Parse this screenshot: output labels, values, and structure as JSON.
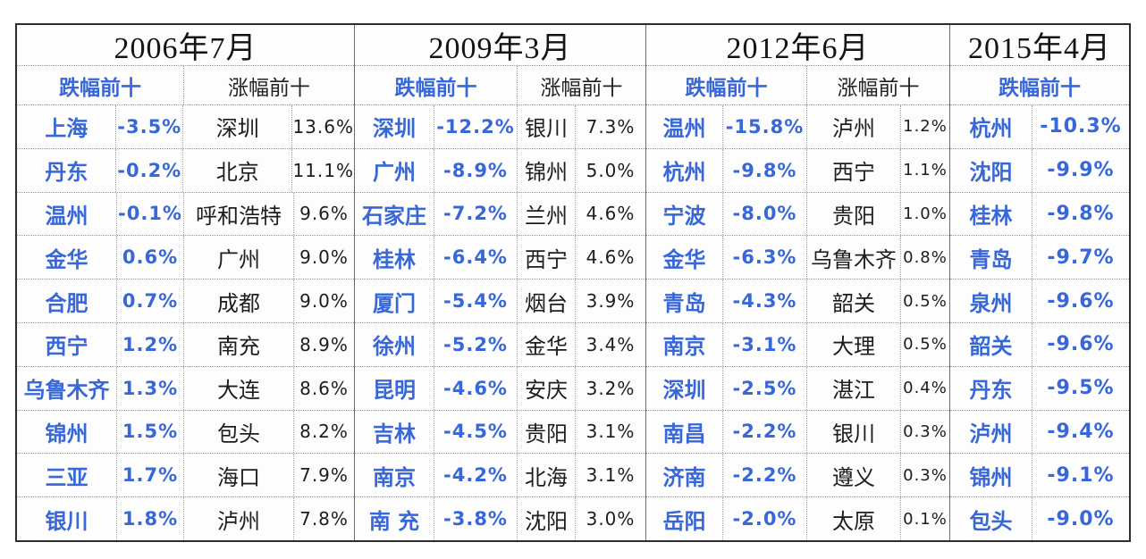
{
  "colors": {
    "accent_blue": "#3767d8",
    "text_black": "#1d1d1d",
    "grid_dotted": "#9a9a9a",
    "outer_border": "#2e2e2e"
  },
  "panels": [
    {
      "date": "2006年7月",
      "decline_header": "跌幅前十",
      "gain_header": "涨幅前十",
      "decline": [
        {
          "city": "上海",
          "pct": "-3.5%"
        },
        {
          "city": "丹东",
          "pct": "-0.2%"
        },
        {
          "city": "温州",
          "pct": "-0.1%"
        },
        {
          "city": "金华",
          "pct": "0.6%"
        },
        {
          "city": "合肥",
          "pct": "0.7%"
        },
        {
          "city": "西宁",
          "pct": "1.2%"
        },
        {
          "city": "乌鲁木齐",
          "pct": "1.3%"
        },
        {
          "city": "锦州",
          "pct": "1.5%"
        },
        {
          "city": "三亚",
          "pct": "1.7%"
        },
        {
          "city": "银川",
          "pct": "1.8%"
        }
      ],
      "gain": [
        {
          "city": "深圳",
          "pct": "13.6%"
        },
        {
          "city": "北京",
          "pct": "11.1%"
        },
        {
          "city": "呼和浩特",
          "pct": "9.6%"
        },
        {
          "city": "广州",
          "pct": "9.0%"
        },
        {
          "city": "成都",
          "pct": "9.0%"
        },
        {
          "city": "南充",
          "pct": "8.9%"
        },
        {
          "city": "大连",
          "pct": "8.6%"
        },
        {
          "city": "包头",
          "pct": "8.2%"
        },
        {
          "city": "海口",
          "pct": "7.9%"
        },
        {
          "city": "泸州",
          "pct": "7.8%"
        }
      ]
    },
    {
      "date": "2009年3月",
      "decline_header": "跌幅前十",
      "gain_header": "涨幅前十",
      "decline": [
        {
          "city": "深圳",
          "pct": "-12.2%"
        },
        {
          "city": "广州",
          "pct": "-8.9%"
        },
        {
          "city": "石家庄",
          "pct": "-7.2%"
        },
        {
          "city": "桂林",
          "pct": "-6.4%"
        },
        {
          "city": "厦门",
          "pct": "-5.4%"
        },
        {
          "city": "徐州",
          "pct": "-5.2%"
        },
        {
          "city": "昆明",
          "pct": "-4.6%"
        },
        {
          "city": "吉林",
          "pct": "-4.5%"
        },
        {
          "city": "南京",
          "pct": "-4.2%"
        },
        {
          "city": "南 充",
          "pct": "-3.8%"
        }
      ],
      "gain": [
        {
          "city": "银川",
          "pct": "7.3%"
        },
        {
          "city": "锦州",
          "pct": "5.0%"
        },
        {
          "city": "兰州",
          "pct": "4.6%"
        },
        {
          "city": "西宁",
          "pct": "4.6%"
        },
        {
          "city": "烟台",
          "pct": "3.9%"
        },
        {
          "city": "金华",
          "pct": "3.4%"
        },
        {
          "city": "安庆",
          "pct": "3.2%"
        },
        {
          "city": "贵阳",
          "pct": "3.1%"
        },
        {
          "city": "北海",
          "pct": "3.1%"
        },
        {
          "city": "沈阳",
          "pct": "3.0%"
        }
      ]
    },
    {
      "date": "2012年6月",
      "decline_header": "跌幅前十",
      "gain_header": "涨幅前十",
      "decline": [
        {
          "city": "温州",
          "pct": "-15.8%"
        },
        {
          "city": "杭州",
          "pct": "-9.8%"
        },
        {
          "city": "宁波",
          "pct": "-8.0%"
        },
        {
          "city": "金华",
          "pct": "-6.3%"
        },
        {
          "city": "青岛",
          "pct": "-4.3%"
        },
        {
          "city": "南京",
          "pct": "-3.1%"
        },
        {
          "city": "深圳",
          "pct": "-2.5%"
        },
        {
          "city": "南昌",
          "pct": "-2.2%"
        },
        {
          "city": "济南",
          "pct": "-2.2%"
        },
        {
          "city": "岳阳",
          "pct": "-2.0%"
        }
      ],
      "gain": [
        {
          "city": "泸州",
          "pct": "1.2%"
        },
        {
          "city": "西宁",
          "pct": "1.1%"
        },
        {
          "city": "贵阳",
          "pct": "1.0%"
        },
        {
          "city": "乌鲁木齐",
          "pct": "0.8%"
        },
        {
          "city": "韶关",
          "pct": "0.5%"
        },
        {
          "city": "大理",
          "pct": "0.5%"
        },
        {
          "city": "湛江",
          "pct": "0.4%"
        },
        {
          "city": "银川",
          "pct": "0.3%"
        },
        {
          "city": "遵义",
          "pct": "0.3%"
        },
        {
          "city": "太原",
          "pct": "0.1%"
        }
      ]
    },
    {
      "date": "2015年4月",
      "decline_header": "跌幅前十",
      "decline": [
        {
          "city": "杭州",
          "pct": "-10.3%"
        },
        {
          "city": "沈阳",
          "pct": "-9.9%"
        },
        {
          "city": "桂林",
          "pct": "-9.8%"
        },
        {
          "city": "青岛",
          "pct": "-9.7%"
        },
        {
          "city": "泉州",
          "pct": "-9.6%"
        },
        {
          "city": "韶关",
          "pct": "-9.6%"
        },
        {
          "city": "丹东",
          "pct": "-9.5%"
        },
        {
          "city": "泸州",
          "pct": "-9.4%"
        },
        {
          "city": "锦州",
          "pct": "-9.1%"
        },
        {
          "city": "包头",
          "pct": "-9.0%"
        }
      ]
    }
  ],
  "chart_data": [
    {
      "type": "table",
      "title": "2006年7月",
      "columns": [
        "跌幅前十城市",
        "跌幅%",
        "涨幅前十城市",
        "涨幅%"
      ],
      "decline_cities": [
        "上海",
        "丹东",
        "温州",
        "金华",
        "合肥",
        "西宁",
        "乌鲁木齐",
        "锦州",
        "三亚",
        "银川"
      ],
      "decline_values": [
        -3.5,
        -0.2,
        -0.1,
        0.6,
        0.7,
        1.2,
        1.3,
        1.5,
        1.7,
        1.8
      ],
      "gain_cities": [
        "深圳",
        "北京",
        "呼和浩特",
        "广州",
        "成都",
        "南充",
        "大连",
        "包头",
        "海口",
        "泸州"
      ],
      "gain_values": [
        13.6,
        11.1,
        9.6,
        9.0,
        9.0,
        8.9,
        8.6,
        8.2,
        7.9,
        7.8
      ]
    },
    {
      "type": "table",
      "title": "2009年3月",
      "columns": [
        "跌幅前十城市",
        "跌幅%",
        "涨幅前十城市",
        "涨幅%"
      ],
      "decline_cities": [
        "深圳",
        "广州",
        "石家庄",
        "桂林",
        "厦门",
        "徐州",
        "昆明",
        "吉林",
        "南京",
        "南充"
      ],
      "decline_values": [
        -12.2,
        -8.9,
        -7.2,
        -6.4,
        -5.4,
        -5.2,
        -4.6,
        -4.5,
        -4.2,
        -3.8
      ],
      "gain_cities": [
        "银川",
        "锦州",
        "兰州",
        "西宁",
        "烟台",
        "金华",
        "安庆",
        "贵阳",
        "北海",
        "沈阳"
      ],
      "gain_values": [
        7.3,
        5.0,
        4.6,
        4.6,
        3.9,
        3.4,
        3.2,
        3.1,
        3.1,
        3.0
      ]
    },
    {
      "type": "table",
      "title": "2012年6月",
      "columns": [
        "跌幅前十城市",
        "跌幅%",
        "涨幅前十城市",
        "涨幅%"
      ],
      "decline_cities": [
        "温州",
        "杭州",
        "宁波",
        "金华",
        "青岛",
        "南京",
        "深圳",
        "南昌",
        "济南",
        "岳阳"
      ],
      "decline_values": [
        -15.8,
        -9.8,
        -8.0,
        -6.3,
        -4.3,
        -3.1,
        -2.5,
        -2.2,
        -2.2,
        -2.0
      ],
      "gain_cities": [
        "泸州",
        "西宁",
        "贵阳",
        "乌鲁木齐",
        "韶关",
        "大理",
        "湛江",
        "银川",
        "遵义",
        "太原"
      ],
      "gain_values": [
        1.2,
        1.1,
        1.0,
        0.8,
        0.5,
        0.5,
        0.4,
        0.3,
        0.3,
        0.1
      ]
    },
    {
      "type": "table",
      "title": "2015年4月",
      "columns": [
        "跌幅前十城市",
        "跌幅%"
      ],
      "decline_cities": [
        "杭州",
        "沈阳",
        "桂林",
        "青岛",
        "泉州",
        "韶关",
        "丹东",
        "泸州",
        "锦州",
        "包头"
      ],
      "decline_values": [
        -10.3,
        -9.9,
        -9.8,
        -9.7,
        -9.6,
        -9.6,
        -9.5,
        -9.4,
        -9.1,
        -9.0
      ]
    }
  ]
}
